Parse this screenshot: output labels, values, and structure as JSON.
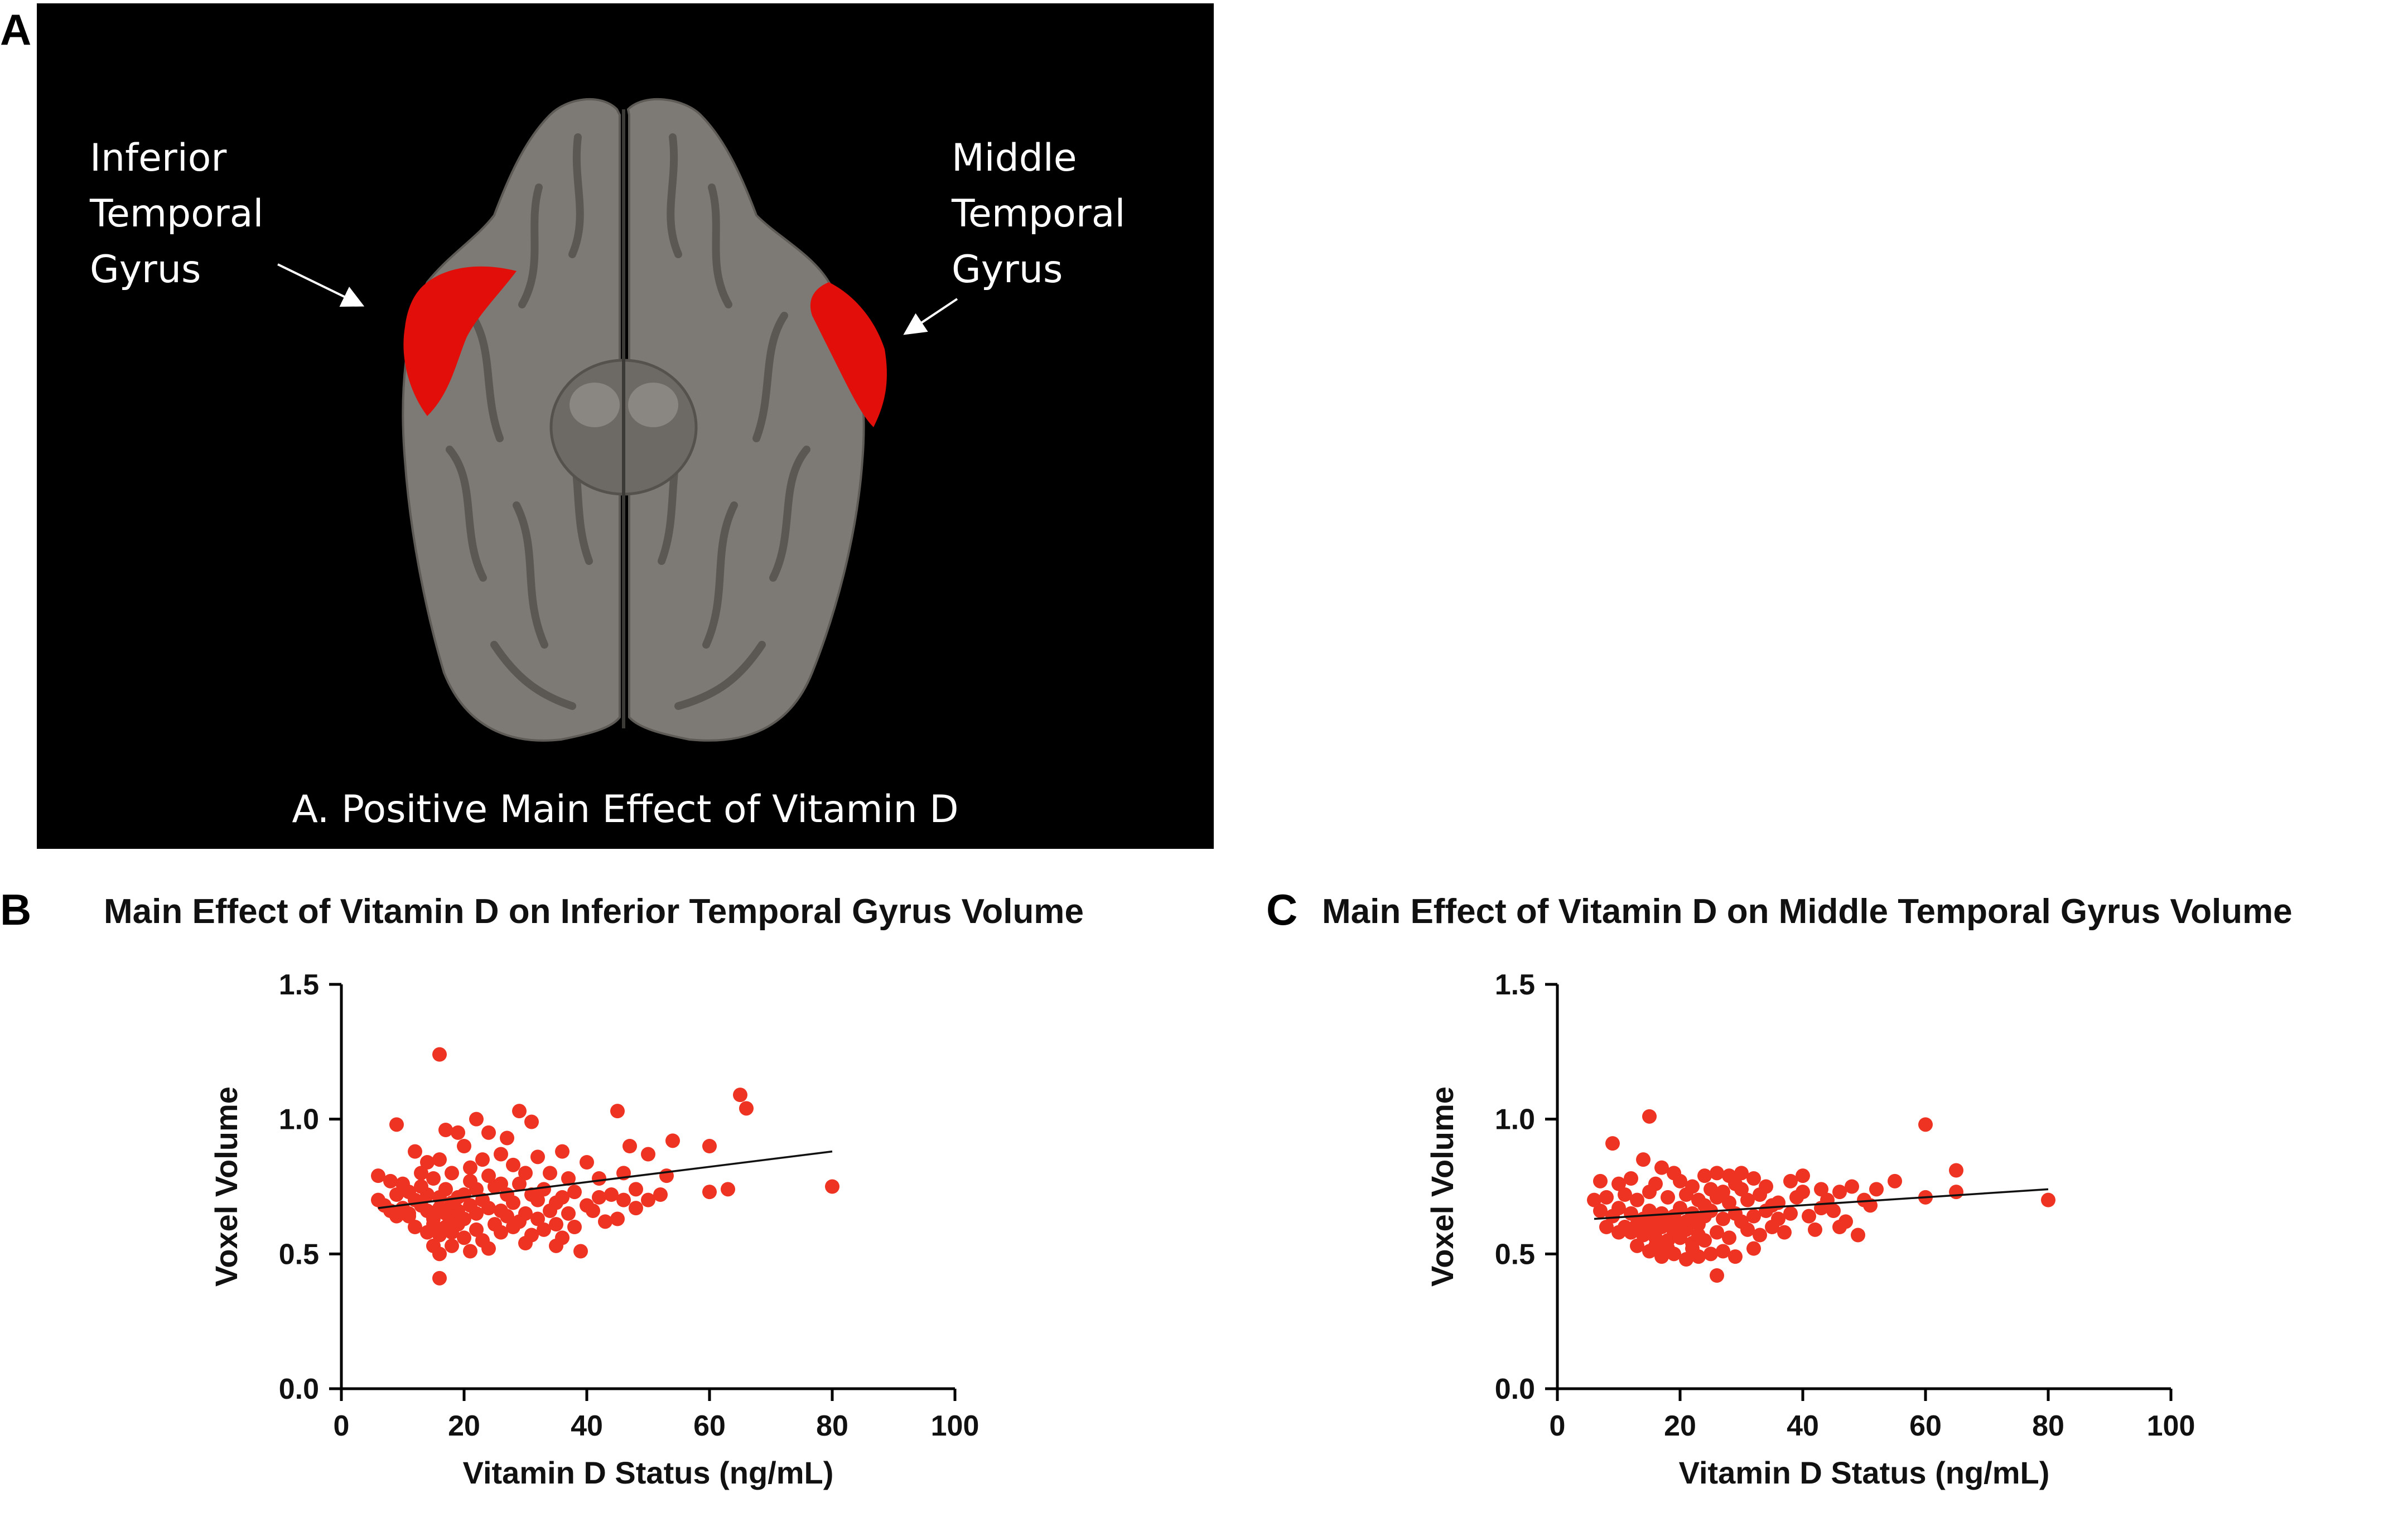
{
  "panels": {
    "a": "A",
    "b": "B",
    "c": "C"
  },
  "brain": {
    "label_left": [
      "Inferior",
      "Temporal",
      "Gyrus"
    ],
    "label_right": [
      "Middle",
      "Temporal",
      "Gyrus"
    ],
    "caption": "A. Positive Main Effect of Vitamin D",
    "colors": {
      "background": "#000000",
      "cortex": "#7d7a75",
      "highlight": "#e10e0a"
    }
  },
  "chart_data": [
    {
      "type": "scatter",
      "title": "Main Effect of Vitamin D on Inferior Temporal Gyrus Volume",
      "xlabel": "Vitamin D Status (ng/mL)",
      "ylabel": "Voxel Volume",
      "xlim": [
        0,
        100
      ],
      "ylim": [
        0,
        1.5
      ],
      "xticks": [
        "0",
        "20",
        "40",
        "60",
        "80",
        "100"
      ],
      "yticks": [
        "0.0",
        "0.5",
        "1.0",
        "1.5"
      ],
      "grid": false,
      "point_color": "#ee3322",
      "fit_line": {
        "x": [
          6,
          80
        ],
        "y": [
          0.67,
          0.88
        ]
      },
      "points": [
        [
          16,
          1.24
        ],
        [
          65,
          1.09
        ],
        [
          66,
          1.04
        ],
        [
          45,
          1.03
        ],
        [
          29,
          1.03
        ],
        [
          9,
          0.98
        ],
        [
          22,
          1.0
        ],
        [
          31,
          0.99
        ],
        [
          60,
          0.9
        ],
        [
          47,
          0.9
        ],
        [
          54,
          0.92
        ],
        [
          27,
          0.93
        ],
        [
          17,
          0.96
        ],
        [
          19,
          0.95
        ],
        [
          24,
          0.95
        ],
        [
          12,
          0.88
        ],
        [
          20,
          0.9
        ],
        [
          36,
          0.88
        ],
        [
          50,
          0.87
        ],
        [
          14,
          0.84
        ],
        [
          16,
          0.85
        ],
        [
          23,
          0.85
        ],
        [
          26,
          0.87
        ],
        [
          32,
          0.86
        ],
        [
          40,
          0.84
        ],
        [
          6,
          0.79
        ],
        [
          8,
          0.77
        ],
        [
          10,
          0.76
        ],
        [
          13,
          0.8
        ],
        [
          15,
          0.78
        ],
        [
          18,
          0.8
        ],
        [
          21,
          0.82
        ],
        [
          28,
          0.83
        ],
        [
          30,
          0.8
        ],
        [
          34,
          0.8
        ],
        [
          42,
          0.78
        ],
        [
          46,
          0.8
        ],
        [
          53,
          0.79
        ],
        [
          60,
          0.73
        ],
        [
          9,
          0.72
        ],
        [
          11,
          0.73
        ],
        [
          12,
          0.7
        ],
        [
          14,
          0.72
        ],
        [
          16,
          0.71
        ],
        [
          17,
          0.74
        ],
        [
          19,
          0.71
        ],
        [
          22,
          0.74
        ],
        [
          25,
          0.75
        ],
        [
          27,
          0.72
        ],
        [
          29,
          0.76
        ],
        [
          31,
          0.72
        ],
        [
          33,
          0.74
        ],
        [
          36,
          0.71
        ],
        [
          38,
          0.73
        ],
        [
          44,
          0.72
        ],
        [
          48,
          0.74
        ],
        [
          50,
          0.7
        ],
        [
          52,
          0.72
        ],
        [
          7,
          0.68
        ],
        [
          8,
          0.66
        ],
        [
          10,
          0.67
        ],
        [
          11,
          0.64
        ],
        [
          13,
          0.68
        ],
        [
          14,
          0.66
        ],
        [
          15,
          0.63
        ],
        [
          16,
          0.67
        ],
        [
          17,
          0.65
        ],
        [
          18,
          0.62
        ],
        [
          19,
          0.66
        ],
        [
          20,
          0.63
        ],
        [
          21,
          0.68
        ],
        [
          22,
          0.65
        ],
        [
          24,
          0.67
        ],
        [
          25,
          0.61
        ],
        [
          26,
          0.66
        ],
        [
          28,
          0.69
        ],
        [
          30,
          0.65
        ],
        [
          32,
          0.63
        ],
        [
          34,
          0.66
        ],
        [
          35,
          0.61
        ],
        [
          37,
          0.65
        ],
        [
          40,
          0.68
        ],
        [
          46,
          0.7
        ],
        [
          12,
          0.6
        ],
        [
          14,
          0.58
        ],
        [
          15,
          0.61
        ],
        [
          16,
          0.57
        ],
        [
          17,
          0.6
        ],
        [
          18,
          0.58
        ],
        [
          19,
          0.61
        ],
        [
          20,
          0.56
        ],
        [
          22,
          0.59
        ],
        [
          23,
          0.55
        ],
        [
          26,
          0.58
        ],
        [
          28,
          0.6
        ],
        [
          31,
          0.57
        ],
        [
          33,
          0.59
        ],
        [
          36,
          0.56
        ],
        [
          38,
          0.6
        ],
        [
          43,
          0.62
        ],
        [
          15,
          0.53
        ],
        [
          16,
          0.5
        ],
        [
          18,
          0.53
        ],
        [
          21,
          0.51
        ],
        [
          24,
          0.52
        ],
        [
          30,
          0.54
        ],
        [
          35,
          0.53
        ],
        [
          39,
          0.51
        ],
        [
          16,
          0.41
        ],
        [
          80,
          0.75
        ],
        [
          63,
          0.74
        ],
        [
          11,
          0.65
        ],
        [
          13,
          0.75
        ],
        [
          20,
          0.72
        ],
        [
          23,
          0.7
        ],
        [
          27,
          0.64
        ],
        [
          29,
          0.62
        ],
        [
          32,
          0.7
        ],
        [
          35,
          0.69
        ],
        [
          41,
          0.66
        ],
        [
          45,
          0.63
        ],
        [
          48,
          0.67
        ],
        [
          6,
          0.7
        ],
        [
          9,
          0.64
        ],
        [
          18,
          0.69
        ],
        [
          21,
          0.77
        ],
        [
          24,
          0.79
        ],
        [
          26,
          0.76
        ],
        [
          37,
          0.78
        ],
        [
          42,
          0.71
        ]
      ]
    },
    {
      "type": "scatter",
      "title": "Main Effect of Vitamin D on Middle Temporal Gyrus Volume",
      "xlabel": "Vitamin D Status (ng/mL)",
      "ylabel": "Voxel Volume",
      "xlim": [
        0,
        100
      ],
      "ylim": [
        0,
        1.5
      ],
      "xticks": [
        "0",
        "20",
        "40",
        "60",
        "80",
        "100"
      ],
      "yticks": [
        "0.0",
        "0.5",
        "1.0",
        "1.5"
      ],
      "grid": false,
      "point_color": "#ee3322",
      "fit_line": {
        "x": [
          6,
          80
        ],
        "y": [
          0.63,
          0.74
        ]
      },
      "points": [
        [
          15,
          1.01
        ],
        [
          60,
          0.98
        ],
        [
          9,
          0.91
        ],
        [
          65,
          0.81
        ],
        [
          14,
          0.85
        ],
        [
          17,
          0.82
        ],
        [
          19,
          0.8
        ],
        [
          24,
          0.79
        ],
        [
          26,
          0.8
        ],
        [
          28,
          0.79
        ],
        [
          30,
          0.8
        ],
        [
          32,
          0.78
        ],
        [
          40,
          0.79
        ],
        [
          55,
          0.77
        ],
        [
          7,
          0.77
        ],
        [
          10,
          0.76
        ],
        [
          12,
          0.78
        ],
        [
          16,
          0.76
        ],
        [
          20,
          0.77
        ],
        [
          22,
          0.75
        ],
        [
          25,
          0.74
        ],
        [
          29,
          0.76
        ],
        [
          34,
          0.75
        ],
        [
          38,
          0.77
        ],
        [
          43,
          0.74
        ],
        [
          46,
          0.73
        ],
        [
          48,
          0.75
        ],
        [
          52,
          0.74
        ],
        [
          6,
          0.7
        ],
        [
          8,
          0.71
        ],
        [
          11,
          0.72
        ],
        [
          13,
          0.7
        ],
        [
          15,
          0.73
        ],
        [
          18,
          0.71
        ],
        [
          21,
          0.72
        ],
        [
          23,
          0.7
        ],
        [
          26,
          0.71
        ],
        [
          27,
          0.73
        ],
        [
          31,
          0.7
        ],
        [
          33,
          0.72
        ],
        [
          36,
          0.69
        ],
        [
          39,
          0.71
        ],
        [
          44,
          0.7
        ],
        [
          50,
          0.7
        ],
        [
          60,
          0.71
        ],
        [
          65,
          0.73
        ],
        [
          80,
          0.7
        ],
        [
          7,
          0.66
        ],
        [
          9,
          0.64
        ],
        [
          10,
          0.67
        ],
        [
          12,
          0.65
        ],
        [
          14,
          0.63
        ],
        [
          15,
          0.66
        ],
        [
          16,
          0.62
        ],
        [
          17,
          0.65
        ],
        [
          18,
          0.61
        ],
        [
          19,
          0.64
        ],
        [
          20,
          0.67
        ],
        [
          21,
          0.62
        ],
        [
          22,
          0.65
        ],
        [
          23,
          0.61
        ],
        [
          24,
          0.64
        ],
        [
          25,
          0.66
        ],
        [
          27,
          0.63
        ],
        [
          29,
          0.65
        ],
        [
          30,
          0.62
        ],
        [
          32,
          0.64
        ],
        [
          34,
          0.66
        ],
        [
          36,
          0.63
        ],
        [
          38,
          0.65
        ],
        [
          41,
          0.64
        ],
        [
          45,
          0.66
        ],
        [
          47,
          0.62
        ],
        [
          11,
          0.6
        ],
        [
          12,
          0.58
        ],
        [
          13,
          0.61
        ],
        [
          14,
          0.57
        ],
        [
          15,
          0.59
        ],
        [
          16,
          0.56
        ],
        [
          17,
          0.6
        ],
        [
          18,
          0.55
        ],
        [
          19,
          0.58
        ],
        [
          20,
          0.56
        ],
        [
          21,
          0.59
        ],
        [
          22,
          0.54
        ],
        [
          23,
          0.57
        ],
        [
          24,
          0.55
        ],
        [
          26,
          0.58
        ],
        [
          28,
          0.56
        ],
        [
          31,
          0.59
        ],
        [
          33,
          0.57
        ],
        [
          35,
          0.6
        ],
        [
          37,
          0.58
        ],
        [
          42,
          0.59
        ],
        [
          46,
          0.6
        ],
        [
          49,
          0.57
        ],
        [
          13,
          0.53
        ],
        [
          15,
          0.51
        ],
        [
          16,
          0.53
        ],
        [
          17,
          0.49
        ],
        [
          18,
          0.52
        ],
        [
          19,
          0.5
        ],
        [
          21,
          0.48
        ],
        [
          22,
          0.52
        ],
        [
          23,
          0.49
        ],
        [
          25,
          0.5
        ],
        [
          27,
          0.51
        ],
        [
          29,
          0.49
        ],
        [
          32,
          0.52
        ],
        [
          26,
          0.42
        ],
        [
          8,
          0.6
        ],
        [
          10,
          0.58
        ],
        [
          20,
          0.61
        ],
        [
          24,
          0.68
        ],
        [
          28,
          0.69
        ],
        [
          30,
          0.74
        ],
        [
          35,
          0.68
        ],
        [
          40,
          0.73
        ],
        [
          43,
          0.67
        ],
        [
          51,
          0.68
        ]
      ]
    }
  ]
}
